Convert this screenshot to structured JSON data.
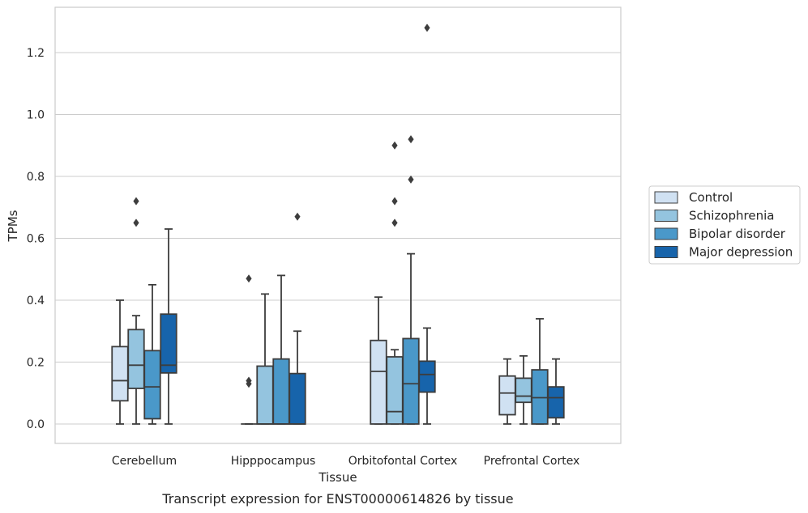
{
  "chart_data": {
    "type": "boxplot",
    "caption": "Transcript expression for ENST00000614826 by tissue",
    "xlabel": "Tissue",
    "ylabel": "TPMs",
    "ylim": [
      -0.064,
      1.35
    ],
    "yticks": [
      0.0,
      0.2,
      0.4,
      0.6,
      0.8,
      1.0,
      1.2
    ],
    "ytick_labels": [
      "0.0",
      "0.2",
      "0.4",
      "0.6",
      "0.8",
      "1.0",
      "1.2"
    ],
    "grid": "horizontal",
    "legend_position": "right-center",
    "categories": [
      "Cerebellum",
      "Hipppocampus",
      "Orbitofontal Cortex",
      "Prefrontal Cortex"
    ],
    "series": [
      {
        "name": "Control",
        "color": "#d0e1f2",
        "boxes": [
          {
            "min": 0.0,
            "q1": 0.075,
            "median": 0.14,
            "q3": 0.25,
            "max": 0.4,
            "outliers": []
          },
          {
            "min": 0.0,
            "q1": 0.0,
            "median": 0.0,
            "q3": 0.0,
            "max": 0.0,
            "outliers": [
              0.47,
              0.14,
              0.13
            ]
          },
          {
            "min": 0.0,
            "q1": 0.0,
            "median": 0.17,
            "q3": 0.27,
            "max": 0.41,
            "outliers": []
          },
          {
            "min": 0.0,
            "q1": 0.03,
            "median": 0.1,
            "q3": 0.155,
            "max": 0.21,
            "outliers": []
          }
        ]
      },
      {
        "name": "Schizophrenia",
        "color": "#94c4df",
        "boxes": [
          {
            "min": 0.0,
            "q1": 0.115,
            "median": 0.19,
            "q3": 0.305,
            "max": 0.35,
            "outliers": [
              0.72,
              0.65
            ]
          },
          {
            "min": 0.0,
            "q1": 0.0,
            "median": 0.0,
            "q3": 0.187,
            "max": 0.42,
            "outliers": []
          },
          {
            "min": 0.0,
            "q1": 0.0,
            "median": 0.04,
            "q3": 0.217,
            "max": 0.24,
            "outliers": [
              0.9,
              0.72,
              0.65
            ]
          },
          {
            "min": 0.0,
            "q1": 0.07,
            "median": 0.09,
            "q3": 0.148,
            "max": 0.22,
            "outliers": []
          }
        ]
      },
      {
        "name": "Bipolar disorder",
        "color": "#4a98c9",
        "boxes": [
          {
            "min": 0.0,
            "q1": 0.017,
            "median": 0.12,
            "q3": 0.237,
            "max": 0.45,
            "outliers": []
          },
          {
            "min": 0.0,
            "q1": 0.0,
            "median": 0.0,
            "q3": 0.21,
            "max": 0.48,
            "outliers": []
          },
          {
            "min": 0.0,
            "q1": 0.0,
            "median": 0.13,
            "q3": 0.276,
            "max": 0.55,
            "outliers": [
              0.92,
              0.79
            ]
          },
          {
            "min": 0.0,
            "q1": 0.0,
            "median": 0.085,
            "q3": 0.175,
            "max": 0.34,
            "outliers": []
          }
        ]
      },
      {
        "name": "Major depression",
        "color": "#1764ab",
        "boxes": [
          {
            "min": 0.0,
            "q1": 0.165,
            "median": 0.19,
            "q3": 0.355,
            "max": 0.63,
            "outliers": []
          },
          {
            "min": 0.0,
            "q1": 0.0,
            "median": 0.0,
            "q3": 0.163,
            "max": 0.3,
            "outliers": [
              0.67
            ]
          },
          {
            "min": 0.0,
            "q1": 0.103,
            "median": 0.16,
            "q3": 0.203,
            "max": 0.31,
            "outliers": [
              1.28
            ]
          },
          {
            "min": 0.0,
            "q1": 0.02,
            "median": 0.085,
            "q3": 0.12,
            "max": 0.21,
            "outliers": []
          }
        ]
      }
    ]
  }
}
